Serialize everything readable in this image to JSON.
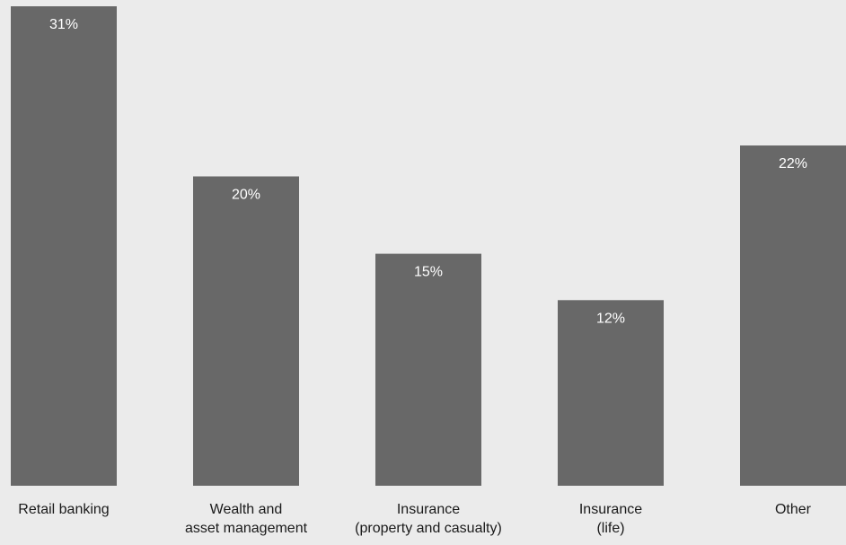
{
  "chart_data": {
    "type": "bar",
    "categories": [
      [
        "Retail banking"
      ],
      [
        "Wealth and",
        "asset management"
      ],
      [
        "Insurance",
        "(property and casualty)"
      ],
      [
        "Insurance",
        "(life)"
      ],
      [
        "Other"
      ]
    ],
    "values": [
      31,
      20,
      15,
      12,
      22
    ],
    "value_labels": [
      "31%",
      "20%",
      "15%",
      "12%",
      "22%"
    ],
    "value_unit": "%",
    "ylim": [
      0,
      31
    ],
    "grid": false,
    "legend": "none",
    "bar_color": "#686868",
    "background": "#ebebeb"
  }
}
